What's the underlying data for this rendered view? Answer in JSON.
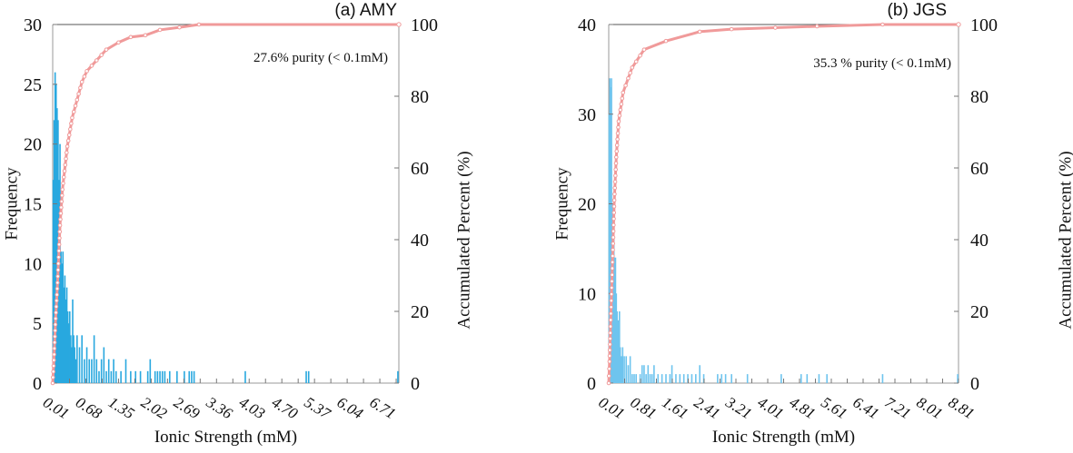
{
  "chart_data": [
    {
      "type": "bar+line",
      "title": "(a) AMY",
      "annotation": "27.6% purity (< 0.1mM)",
      "xlabel": "Ionic Strength (mM)",
      "ylabel": "Frequency",
      "y2label": "Accumulated Percent (%)",
      "xlim": [
        0,
        7.1
      ],
      "ylim": [
        0,
        30
      ],
      "y2lim": [
        0,
        100
      ],
      "xticks": [
        "0.01",
        "0.68",
        "1.35",
        "2.02",
        "2.69",
        "3.36",
        "4.03",
        "4.70",
        "5.37",
        "6.04",
        "6.71"
      ],
      "xtick_values": [
        0.01,
        0.68,
        1.35,
        2.02,
        2.69,
        3.36,
        4.03,
        4.7,
        5.37,
        6.04,
        6.71
      ],
      "yticks": [
        0,
        5,
        10,
        15,
        20,
        25,
        30
      ],
      "y2ticks": [
        0,
        20,
        40,
        60,
        80,
        100
      ],
      "bar_color": "#29a8df",
      "line_color": "#f09a9a",
      "histogram": [
        [
          0.01,
          17
        ],
        [
          0.03,
          22
        ],
        [
          0.05,
          26
        ],
        [
          0.07,
          25
        ],
        [
          0.09,
          23
        ],
        [
          0.11,
          22
        ],
        [
          0.13,
          17
        ],
        [
          0.15,
          20
        ],
        [
          0.17,
          11
        ],
        [
          0.19,
          10
        ],
        [
          0.21,
          11
        ],
        [
          0.23,
          8
        ],
        [
          0.25,
          9
        ],
        [
          0.27,
          7
        ],
        [
          0.29,
          8
        ],
        [
          0.31,
          6
        ],
        [
          0.33,
          5
        ],
        [
          0.35,
          6
        ],
        [
          0.37,
          4
        ],
        [
          0.39,
          3
        ],
        [
          0.41,
          7
        ],
        [
          0.43,
          4
        ],
        [
          0.45,
          3
        ],
        [
          0.47,
          2
        ],
        [
          0.5,
          4
        ],
        [
          0.55,
          3
        ],
        [
          0.6,
          4
        ],
        [
          0.65,
          2
        ],
        [
          0.7,
          3
        ],
        [
          0.75,
          2
        ],
        [
          0.8,
          2
        ],
        [
          0.85,
          4
        ],
        [
          0.9,
          2
        ],
        [
          0.95,
          1
        ],
        [
          1.0,
          2
        ],
        [
          1.05,
          3
        ],
        [
          1.1,
          1
        ],
        [
          1.15,
          2
        ],
        [
          1.2,
          1
        ],
        [
          1.25,
          2
        ],
        [
          1.3,
          1
        ],
        [
          1.4,
          1
        ],
        [
          1.5,
          2
        ],
        [
          1.6,
          1
        ],
        [
          1.7,
          1
        ],
        [
          1.8,
          1
        ],
        [
          1.95,
          1
        ],
        [
          2.0,
          2
        ],
        [
          2.1,
          1
        ],
        [
          2.15,
          1
        ],
        [
          2.2,
          1
        ],
        [
          2.25,
          1
        ],
        [
          2.3,
          1
        ],
        [
          2.4,
          1
        ],
        [
          2.55,
          1
        ],
        [
          2.7,
          1
        ],
        [
          2.8,
          1
        ],
        [
          2.85,
          1
        ],
        [
          2.9,
          1
        ],
        [
          3.95,
          1
        ],
        [
          5.2,
          1
        ],
        [
          5.25,
          1
        ],
        [
          7.08,
          1
        ]
      ],
      "cumulative": [
        [
          0,
          0
        ],
        [
          0.03,
          8
        ],
        [
          0.06,
          18
        ],
        [
          0.1,
          28
        ],
        [
          0.15,
          44
        ],
        [
          0.2,
          54
        ],
        [
          0.3,
          66
        ],
        [
          0.4,
          74
        ],
        [
          0.5,
          79
        ],
        [
          0.6,
          84
        ],
        [
          0.7,
          87
        ],
        [
          0.9,
          90
        ],
        [
          1.1,
          93
        ],
        [
          1.35,
          95
        ],
        [
          1.6,
          96.5
        ],
        [
          1.9,
          97
        ],
        [
          2.2,
          98.5
        ],
        [
          2.6,
          99.2
        ],
        [
          3.0,
          100
        ],
        [
          7.1,
          100
        ]
      ]
    },
    {
      "type": "bar+line",
      "title": "(b) JGS",
      "annotation": "35.3 % purity (< 0.1mM)",
      "xlabel": "Ionic Strength (mM)",
      "ylabel": "Frequency",
      "y2label": "Accumulated Percent (%)",
      "xlim": [
        0.01,
        8.81
      ],
      "ylim": [
        0,
        40
      ],
      "y2lim": [
        0,
        100
      ],
      "xticks": [
        "0.01",
        "0.81",
        "1.61",
        "2.41",
        "3.21",
        "4.01",
        "4.81",
        "5.61",
        "6.41",
        "7.21",
        "8.01",
        "8.81"
      ],
      "xtick_values": [
        0.01,
        0.81,
        1.61,
        2.41,
        3.21,
        4.01,
        4.81,
        5.61,
        6.41,
        7.21,
        8.01,
        8.81
      ],
      "yticks": [
        0,
        10,
        20,
        30,
        40
      ],
      "y2ticks": [
        0,
        20,
        40,
        60,
        80,
        100
      ],
      "bar_color": "#6ec4ee",
      "line_color": "#f09a9a",
      "histogram": [
        [
          0.02,
          30
        ],
        [
          0.04,
          34
        ],
        [
          0.06,
          33
        ],
        [
          0.08,
          34
        ],
        [
          0.1,
          20
        ],
        [
          0.12,
          19
        ],
        [
          0.14,
          18
        ],
        [
          0.16,
          14
        ],
        [
          0.18,
          14
        ],
        [
          0.2,
          10
        ],
        [
          0.22,
          8
        ],
        [
          0.24,
          7
        ],
        [
          0.26,
          7
        ],
        [
          0.28,
          8
        ],
        [
          0.3,
          4
        ],
        [
          0.33,
          3
        ],
        [
          0.36,
          4
        ],
        [
          0.4,
          3
        ],
        [
          0.45,
          3
        ],
        [
          0.5,
          2
        ],
        [
          0.55,
          3
        ],
        [
          0.6,
          1
        ],
        [
          0.65,
          1
        ],
        [
          0.7,
          1
        ],
        [
          0.8,
          1
        ],
        [
          0.85,
          2
        ],
        [
          0.9,
          2
        ],
        [
          0.95,
          1
        ],
        [
          1.0,
          2
        ],
        [
          1.05,
          1
        ],
        [
          1.1,
          1
        ],
        [
          1.15,
          2
        ],
        [
          1.25,
          1
        ],
        [
          1.35,
          1
        ],
        [
          1.45,
          1
        ],
        [
          1.55,
          1
        ],
        [
          1.6,
          2
        ],
        [
          1.7,
          1
        ],
        [
          1.8,
          1
        ],
        [
          1.9,
          1
        ],
        [
          2.0,
          1
        ],
        [
          2.1,
          1
        ],
        [
          2.2,
          1
        ],
        [
          2.3,
          2
        ],
        [
          2.4,
          1
        ],
        [
          2.75,
          1
        ],
        [
          2.85,
          1
        ],
        [
          2.95,
          1
        ],
        [
          3.1,
          1
        ],
        [
          3.5,
          1
        ],
        [
          4.35,
          1
        ],
        [
          4.85,
          1
        ],
        [
          5.0,
          1
        ],
        [
          5.3,
          1
        ],
        [
          5.5,
          1
        ],
        [
          6.9,
          1
        ],
        [
          8.79,
          1
        ]
      ],
      "cumulative": [
        [
          0.01,
          0
        ],
        [
          0.03,
          6
        ],
        [
          0.05,
          14
        ],
        [
          0.1,
          32
        ],
        [
          0.15,
          51
        ],
        [
          0.2,
          63
        ],
        [
          0.26,
          73
        ],
        [
          0.37,
          81
        ],
        [
          0.5,
          85
        ],
        [
          0.6,
          88
        ],
        [
          0.9,
          93
        ],
        [
          1.45,
          95.4
        ],
        [
          2.3,
          98
        ],
        [
          3.1,
          98.7
        ],
        [
          4.2,
          99.1
        ],
        [
          5.25,
          99.5
        ],
        [
          6.9,
          100
        ],
        [
          8.81,
          100
        ]
      ]
    }
  ]
}
